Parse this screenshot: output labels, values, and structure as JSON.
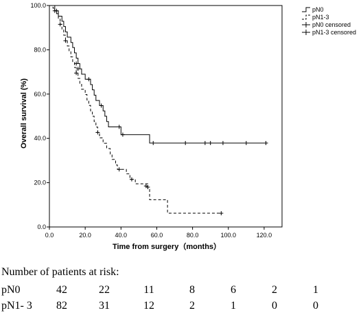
{
  "chart_data": {
    "type": "line",
    "xlabel": "Time from surgery（months）",
    "ylabel": "Overall survival (%)",
    "xlim": [
      0,
      130
    ],
    "ylim": [
      0,
      100
    ],
    "x_ticks": [
      "0.0",
      "20.0",
      "40.0",
      "60.0",
      "80.0",
      "100.0",
      "120.0"
    ],
    "y_ticks": [
      "0.0",
      "20.0",
      "40.0",
      "60.0",
      "80.0",
      "100.0"
    ],
    "x_tick_values": [
      0,
      20,
      40,
      60,
      80,
      100,
      120
    ],
    "y_tick_values": [
      0,
      20,
      40,
      60,
      80,
      100
    ],
    "legend_position": "top-right outside plot",
    "legend": [
      "pN0",
      "pN1-3",
      "pN0 censored",
      "pN1-3 censored"
    ],
    "series": [
      {
        "name": "pN0",
        "line_style": "solid",
        "color": "#000000",
        "steps": [
          [
            0,
            100
          ],
          [
            3,
            97.6
          ],
          [
            5,
            95.2
          ],
          [
            7,
            92.9
          ],
          [
            8,
            90.5
          ],
          [
            9,
            88.1
          ],
          [
            10,
            85.7
          ],
          [
            12,
            83.3
          ],
          [
            13,
            81.0
          ],
          [
            14,
            78.6
          ],
          [
            15,
            76.2
          ],
          [
            16,
            73.8
          ],
          [
            17,
            71.4
          ],
          [
            18,
            69.0
          ],
          [
            20,
            66.7
          ],
          [
            23,
            64.3
          ],
          [
            24,
            61.9
          ],
          [
            25,
            59.5
          ],
          [
            26,
            57.1
          ],
          [
            28,
            54.8
          ],
          [
            30,
            52.4
          ],
          [
            31,
            50.0
          ],
          [
            32,
            47.6
          ],
          [
            33,
            45.2
          ],
          [
            40,
            41.7
          ],
          [
            56,
            37.9
          ],
          [
            122,
            37.9
          ]
        ],
        "censored": [
          [
            4,
            97.6
          ],
          [
            15,
            73.8
          ],
          [
            16,
            71.4
          ],
          [
            22,
            66.7
          ],
          [
            29,
            54.8
          ],
          [
            39,
            45.2
          ],
          [
            41,
            41.7
          ],
          [
            58,
            37.9
          ],
          [
            76,
            37.9
          ],
          [
            87,
            37.9
          ],
          [
            90,
            37.9
          ],
          [
            97,
            37.9
          ],
          [
            110,
            37.9
          ],
          [
            121,
            37.9
          ]
        ]
      },
      {
        "name": "pN1-3",
        "line_style": "dashed",
        "color": "#000000",
        "steps": [
          [
            0,
            100
          ],
          [
            2,
            98.8
          ],
          [
            3,
            97.6
          ],
          [
            4,
            96.3
          ],
          [
            5,
            93.9
          ],
          [
            6,
            91.5
          ],
          [
            7,
            89.0
          ],
          [
            8,
            86.6
          ],
          [
            9,
            84.1
          ],
          [
            10,
            81.7
          ],
          [
            11,
            79.3
          ],
          [
            12,
            76.8
          ],
          [
            13,
            74.4
          ],
          [
            14,
            72.0
          ],
          [
            15,
            69.5
          ],
          [
            16,
            67.1
          ],
          [
            17,
            64.6
          ],
          [
            18,
            62.2
          ],
          [
            20,
            59.8
          ],
          [
            21,
            57.3
          ],
          [
            22,
            54.9
          ],
          [
            23,
            52.4
          ],
          [
            24,
            50.0
          ],
          [
            25,
            47.6
          ],
          [
            26,
            45.1
          ],
          [
            27,
            42.7
          ],
          [
            28,
            40.2
          ],
          [
            30,
            37.8
          ],
          [
            32,
            35.4
          ],
          [
            34,
            32.9
          ],
          [
            35,
            30.5
          ],
          [
            37,
            28.0
          ],
          [
            38,
            26.0
          ],
          [
            43,
            24.0
          ],
          [
            45,
            21.5
          ],
          [
            48,
            19.5
          ],
          [
            55,
            17.0
          ],
          [
            56,
            12.3
          ],
          [
            66,
            6.2
          ],
          [
            96,
            6.2
          ]
        ],
        "censored": [
          [
            3,
            97.6
          ],
          [
            6,
            91.5
          ],
          [
            9,
            84.1
          ],
          [
            15,
            69.5
          ],
          [
            27,
            42.7
          ],
          [
            39,
            26.0
          ],
          [
            46,
            21.5
          ],
          [
            54,
            18.5
          ],
          [
            55,
            18.0
          ],
          [
            96,
            6.2
          ]
        ]
      }
    ]
  },
  "risk_table": {
    "title": "Number of patients at risk:",
    "rows": [
      {
        "label": "pN0",
        "values": [
          "42",
          "22",
          "11",
          "8",
          "6",
          "2",
          "1"
        ]
      },
      {
        "label": "pN1- 3",
        "values": [
          "82",
          "31",
          "12",
          "2",
          "1",
          "0",
          "0"
        ]
      }
    ]
  }
}
